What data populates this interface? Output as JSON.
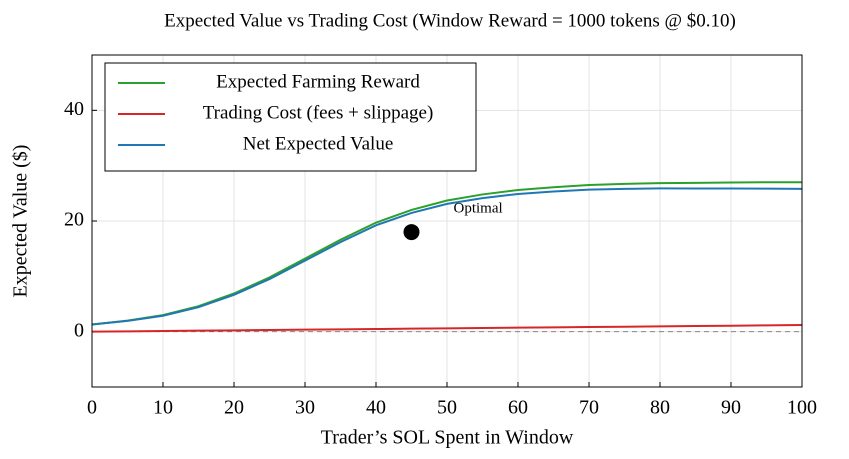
{
  "chart_data": {
    "type": "line",
    "title": "Expected Value vs Trading Cost (Window Reward = 1000 tokens @ $0.10)",
    "xlabel": "Trader’s SOL Spent in Window",
    "ylabel": "Expected Value ($)",
    "x": [
      0,
      5,
      10,
      15,
      20,
      25,
      30,
      35,
      40,
      45,
      50,
      55,
      60,
      65,
      70,
      75,
      80,
      85,
      90,
      95,
      100
    ],
    "series": [
      {
        "name": "Expected Farming Reward",
        "color": "#2ca02c",
        "values": [
          1.3,
          2.0,
          3.0,
          4.6,
          6.9,
          9.8,
          13.2,
          16.6,
          19.7,
          22.0,
          23.7,
          24.8,
          25.6,
          26.1,
          26.5,
          26.7,
          26.85,
          26.9,
          26.95,
          27.0,
          27.0
        ]
      },
      {
        "name": "Trading Cost (fees + slippage)",
        "color": "#d62728",
        "values": [
          0,
          0.06,
          0.12,
          0.18,
          0.24,
          0.3,
          0.36,
          0.42,
          0.48,
          0.54,
          0.6,
          0.66,
          0.72,
          0.78,
          0.84,
          0.9,
          0.96,
          1.02,
          1.08,
          1.14,
          1.2
        ]
      },
      {
        "name": "Net Expected Value",
        "color": "#1f77b4",
        "values": [
          1.3,
          1.94,
          2.88,
          4.42,
          6.66,
          9.5,
          12.84,
          16.18,
          19.22,
          21.46,
          23.1,
          24.14,
          24.88,
          25.32,
          25.66,
          25.8,
          25.89,
          25.88,
          25.87,
          25.86,
          25.8
        ]
      }
    ],
    "points": [
      {
        "x": 45,
        "y": 18,
        "label": "Optimal"
      }
    ],
    "reference_line": 0,
    "xlim": [
      0,
      100
    ],
    "xticks": [
      0,
      10,
      20,
      30,
      40,
      50,
      60,
      70,
      80,
      90,
      100
    ],
    "ylim": [
      -10,
      50
    ],
    "yticks": [
      0,
      20,
      40
    ],
    "grid": true,
    "legend": "upper left"
  }
}
